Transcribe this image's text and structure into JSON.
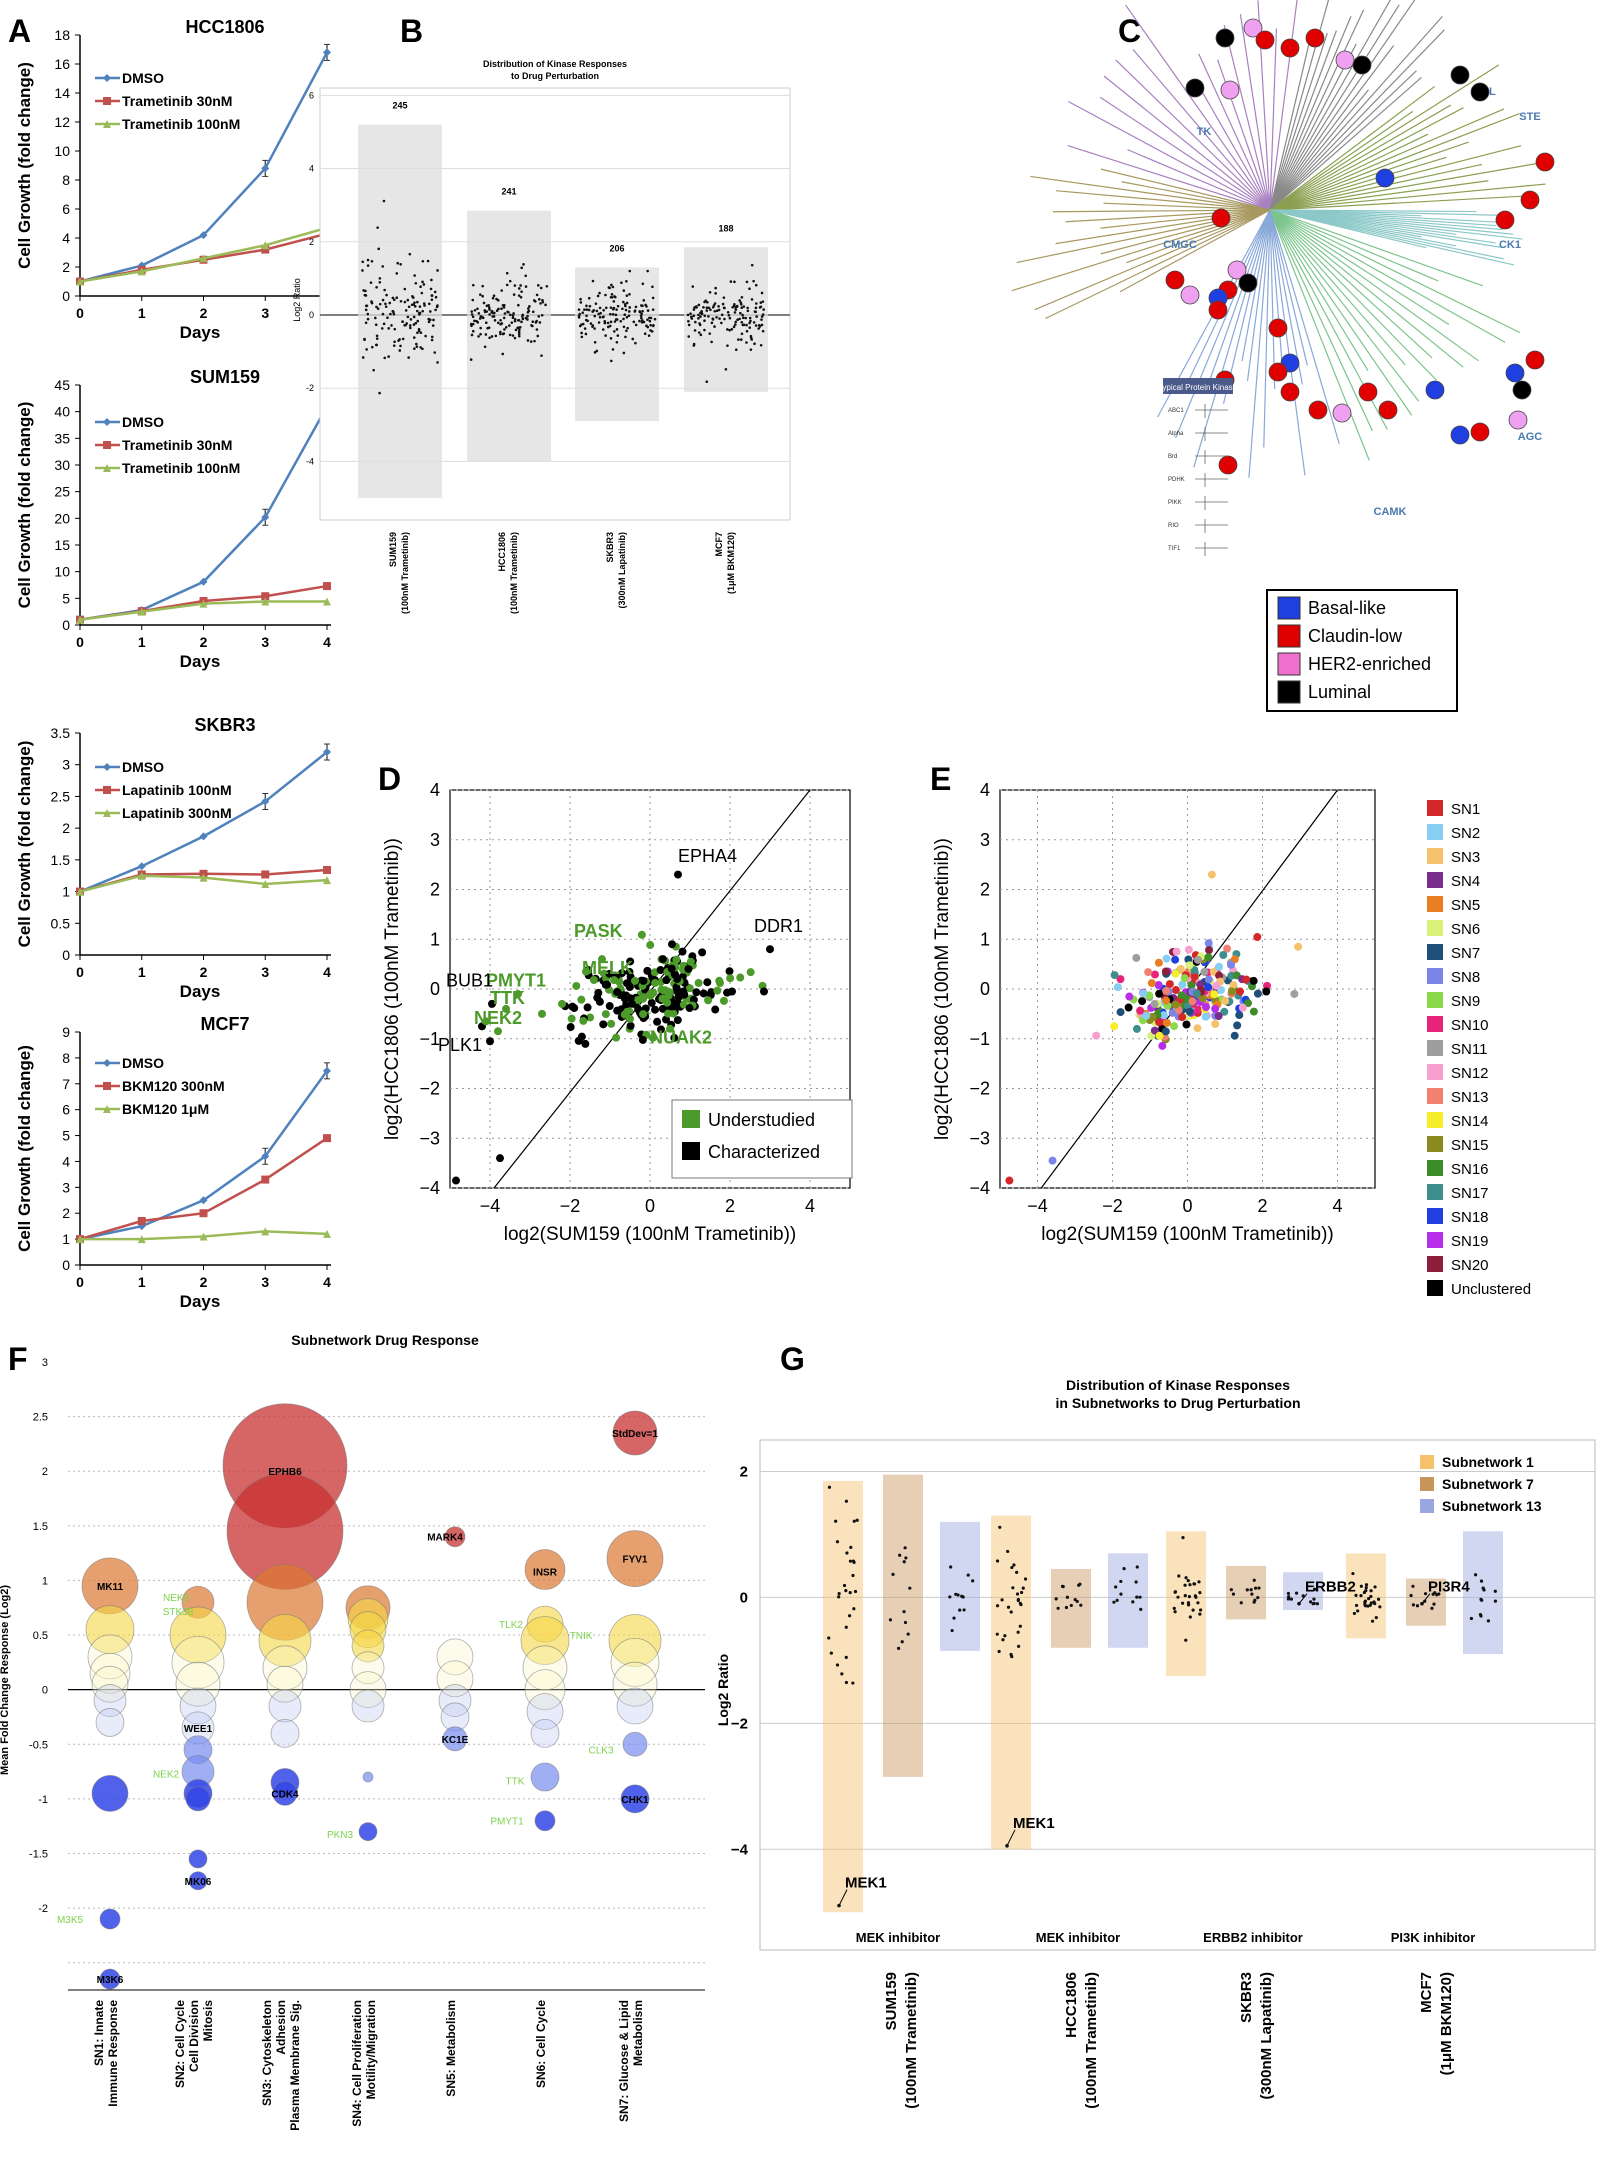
{
  "panel_letters": {
    "A": "A",
    "B": "B",
    "C": "C",
    "D": "D",
    "E": "E",
    "F": "F",
    "G": "G"
  },
  "legend_C": {
    "items": [
      {
        "label": "Basal-like",
        "color": "#1f3fe0"
      },
      {
        "label": "Claudin-low",
        "color": "#e00000"
      },
      {
        "label": "HER2-enriched",
        "color": "#f070d0"
      },
      {
        "label": "Luminal",
        "color": "#000000"
      }
    ]
  },
  "tree_C": {
    "groups": [
      "TK",
      "TKL",
      "STE",
      "CMGC",
      "CK1",
      "AGC",
      "CAMK"
    ],
    "atypical_title": "Atypical Protein Kinases",
    "atypical_rows": [
      "ABC1",
      "Alpha",
      "Brd",
      "PDHK",
      "PIKK",
      "RIO",
      "TIF1"
    ]
  },
  "chart_data": [
    {
      "id": "A1",
      "type": "line",
      "title": "HCC1806",
      "xlabel": "Days",
      "ylabel": "Cell Growth (fold change)",
      "x": [
        0,
        1,
        2,
        3,
        4
      ],
      "xlim": [
        0,
        4
      ],
      "ylim": [
        0,
        18
      ],
      "yticks": [
        0,
        2,
        4,
        6,
        8,
        10,
        12,
        14,
        16,
        18
      ],
      "series": [
        {
          "name": "DMSO",
          "color": "#4f81bd",
          "marker": "diamond",
          "values": [
            1,
            2.1,
            4.2,
            8.8,
            16.8
          ]
        },
        {
          "name": "Trametinib 30nM",
          "color": "#c0504d",
          "marker": "square",
          "values": [
            1,
            1.8,
            2.5,
            3.2,
            4.3
          ]
        },
        {
          "name": "Trametinib 100nM",
          "color": "#9bbb59",
          "marker": "triangle",
          "values": [
            1,
            1.7,
            2.6,
            3.5,
            4.7
          ]
        }
      ]
    },
    {
      "id": "A2",
      "type": "line",
      "title": "SUM159",
      "xlabel": "Days",
      "ylabel": "Cell Growth (fold change)",
      "x": [
        0,
        1,
        2,
        3,
        4
      ],
      "xlim": [
        0,
        4
      ],
      "ylim": [
        0,
        45
      ],
      "yticks": [
        0,
        5,
        10,
        15,
        20,
        25,
        30,
        35,
        40,
        45
      ],
      "series": [
        {
          "name": "DMSO",
          "color": "#4f81bd",
          "marker": "diamond",
          "values": [
            1,
            2.8,
            8.1,
            20.2,
            41
          ]
        },
        {
          "name": "Trametinib 30nM",
          "color": "#c0504d",
          "marker": "square",
          "values": [
            1,
            2.6,
            4.5,
            5.4,
            7.3
          ]
        },
        {
          "name": "Trametinib 100nM",
          "color": "#9bbb59",
          "marker": "triangle",
          "values": [
            1,
            2.5,
            4,
            4.4,
            4.4
          ]
        }
      ]
    },
    {
      "id": "A3",
      "type": "line",
      "title": "SKBR3",
      "xlabel": "Days",
      "ylabel": "Cell Growth (fold change)",
      "x": [
        0,
        1,
        2,
        3,
        4
      ],
      "xlim": [
        0,
        4
      ],
      "ylim": [
        0,
        3.5
      ],
      "yticks": [
        0,
        0.5,
        1,
        1.5,
        2,
        2.5,
        3,
        3.5
      ],
      "series": [
        {
          "name": "DMSO",
          "color": "#4f81bd",
          "marker": "diamond",
          "values": [
            1,
            1.4,
            1.87,
            2.42,
            3.2
          ]
        },
        {
          "name": "Lapatinib 100nM",
          "color": "#c0504d",
          "marker": "square",
          "values": [
            1,
            1.27,
            1.28,
            1.27,
            1.34
          ]
        },
        {
          "name": "Lapatinib 300nM",
          "color": "#9bbb59",
          "marker": "triangle",
          "values": [
            1,
            1.25,
            1.22,
            1.12,
            1.18
          ]
        }
      ]
    },
    {
      "id": "A4",
      "type": "line",
      "title": "MCF7",
      "xlabel": "Days",
      "ylabel": "Cell Growth (fold change)",
      "x": [
        0,
        1,
        2,
        3,
        4
      ],
      "xlim": [
        0,
        4
      ],
      "ylim": [
        0,
        9
      ],
      "yticks": [
        0,
        1,
        2,
        3,
        4,
        5,
        6,
        7,
        8,
        9
      ],
      "series": [
        {
          "name": "DMSO",
          "color": "#4f81bd",
          "marker": "diamond",
          "values": [
            1,
            1.5,
            2.5,
            4.2,
            7.5
          ]
        },
        {
          "name": "BKM120 300nM",
          "color": "#c0504d",
          "marker": "square",
          "values": [
            1,
            1.7,
            2,
            3.3,
            4.9
          ]
        },
        {
          "name": "BKM120 1μM",
          "color": "#9bbb59",
          "marker": "triangle",
          "values": [
            1,
            1,
            1.1,
            1.3,
            1.2
          ]
        }
      ]
    },
    {
      "id": "B",
      "type": "scatter",
      "title": "Distribution of Kinase Responses\nto Drug Perturbation",
      "ylabel": "Log2 Ratio",
      "ylim": [
        -5.6,
        6.2
      ],
      "yticks": [
        -4,
        -2,
        0,
        2,
        4,
        6
      ],
      "categories": [
        "SUM159\n(100nM Trametinib)",
        "HCC1806\n(100nM Trametinib)",
        "SKBR3\n(300nM Lapatinib)",
        "MCF7\n(1μM BKM120)"
      ],
      "counts": [
        "245",
        "241",
        "206",
        "188"
      ],
      "ranges": [
        [
          -5,
          5.2
        ],
        [
          -4,
          2.85
        ],
        [
          -2.9,
          1.3
        ],
        [
          -2.1,
          1.85
        ]
      ]
    },
    {
      "id": "D",
      "type": "scatter",
      "xlabel": "log2(SUM159 (100nM Trametinib))",
      "ylabel": "log2(HCC1806 (100nM Trametinib))",
      "xlim": [
        -5,
        5
      ],
      "ylim": [
        -4,
        4
      ],
      "xticks": [
        -4,
        -2,
        0,
        2,
        4
      ],
      "yticks": [
        -4,
        -3,
        -2,
        -1,
        0,
        1,
        2,
        3,
        4
      ],
      "legend": [
        {
          "label": "Understudied",
          "color": "#4c9a2a"
        },
        {
          "label": "Characterized",
          "color": "#000000"
        }
      ],
      "labels": [
        {
          "text": "EPHA4",
          "x": 0.7,
          "y": 2.55,
          "color": "#000000",
          "bold": false
        },
        {
          "text": "DDR1",
          "x": 2.6,
          "y": 1.15,
          "color": "#000000",
          "bold": false
        },
        {
          "text": "PASK",
          "x": -1.9,
          "y": 1.05,
          "color": "#4c9a2a",
          "bold": true
        },
        {
          "text": "MELK",
          "x": -1.7,
          "y": 0.3,
          "color": "#4c9a2a",
          "bold": true
        },
        {
          "text": "PMYT1",
          "x": -4.1,
          "y": 0.05,
          "color": "#4c9a2a",
          "bold": true
        },
        {
          "text": "BUB1",
          "x": -5.1,
          "y": 0.05,
          "color": "#000000",
          "bold": false
        },
        {
          "text": "TTK",
          "x": -4.0,
          "y": -0.3,
          "color": "#4c9a2a",
          "bold": true
        },
        {
          "text": "NEK2",
          "x": -4.4,
          "y": -0.7,
          "color": "#4c9a2a",
          "bold": true
        },
        {
          "text": "PLK1",
          "x": -5.3,
          "y": -1.25,
          "color": "#000000",
          "bold": false
        },
        {
          "text": "NUAK2",
          "x": 0.0,
          "y": -1.1,
          "color": "#4c9a2a",
          "bold": true
        }
      ],
      "points": [
        [
          -4.85,
          -3.85
        ],
        [
          -3.75,
          -3.4
        ],
        [
          0.7,
          2.3
        ],
        [
          3,
          0.8
        ],
        [
          2.85,
          -0.05
        ],
        [
          2.05,
          -0.05
        ],
        [
          0.55,
          0.9
        ],
        [
          -4.2,
          -0.75
        ],
        [
          -3.95,
          -0.3
        ],
        [
          -4.0,
          -1.05
        ]
      ]
    },
    {
      "id": "E",
      "type": "scatter",
      "xlabel": "log2(SUM159 (100nM Trametinib))",
      "ylabel": "log2(HCC1806 (100nM Trametinib))",
      "xlim": [
        -5,
        5
      ],
      "ylim": [
        -4,
        4
      ],
      "xticks": [
        -4,
        -2,
        0,
        2,
        4
      ],
      "yticks": [
        -4,
        -3,
        -2,
        -1,
        0,
        1,
        2,
        3,
        4
      ],
      "legend": [
        {
          "label": "SN1",
          "color": "#d62728"
        },
        {
          "label": "SN2",
          "color": "#87cef5"
        },
        {
          "label": "SN3",
          "color": "#f5c26b"
        },
        {
          "label": "SN4",
          "color": "#7b2d8e"
        },
        {
          "label": "SN5",
          "color": "#e87e1f"
        },
        {
          "label": "SN6",
          "color": "#d9f07a"
        },
        {
          "label": "SN7",
          "color": "#1f4e79"
        },
        {
          "label": "SN8",
          "color": "#7b85e8"
        },
        {
          "label": "SN9",
          "color": "#8bd94a"
        },
        {
          "label": "SN10",
          "color": "#e8247a"
        },
        {
          "label": "SN11",
          "color": "#9e9e9e"
        },
        {
          "label": "SN12",
          "color": "#f7a0d0"
        },
        {
          "label": "SN13",
          "color": "#f08070"
        },
        {
          "label": "SN14",
          "color": "#f5ee2a"
        },
        {
          "label": "SN15",
          "color": "#8a8a1f"
        },
        {
          "label": "SN16",
          "color": "#3c8c2a"
        },
        {
          "label": "SN17",
          "color": "#3e8e8e"
        },
        {
          "label": "SN18",
          "color": "#1f3fe0"
        },
        {
          "label": "SN19",
          "color": "#b82ee8"
        },
        {
          "label": "SN20",
          "color": "#8e1f3c"
        },
        {
          "label": "Unclustered",
          "color": "#000000"
        }
      ],
      "points": [
        [
          -4.75,
          -3.85,
          "#d62728"
        ],
        [
          -3.6,
          -3.45,
          "#7b85e8"
        ],
        [
          0.65,
          2.3,
          "#f5c26b"
        ],
        [
          2.95,
          0.85,
          "#f5c26b"
        ],
        [
          2.85,
          -0.1,
          "#9e9e9e"
        ],
        [
          2.1,
          -0.05,
          "#000000"
        ]
      ]
    },
    {
      "id": "F",
      "type": "scatter",
      "title": "Subnetwork Drug Response",
      "ylabel": "Mean Fold Change Response (Log2)",
      "ylim": [
        -2.75,
        3
      ],
      "yticks": [
        "3",
        "2.5",
        "2",
        "1.5",
        "1",
        "0.5",
        "0",
        "-0.5",
        "-1",
        "-1.5",
        "-2"
      ],
      "categories": [
        "SN1: Innate\nImmune Response",
        "SN2: Cell Cycle\nCell Division\nMitosis",
        "SN3: Cytoskeleton\nAdhesion\nPlasma Membrane Sig.",
        "SN4: Cell Proliferation\nMotility/Migration",
        "SN5: Metabolism",
        "SN6: Cell Cycle",
        "SN7: Glucose & Lipid\nMetabolism"
      ],
      "labels": [
        {
          "text": "MK11",
          "cat": 0,
          "y": 0.95,
          "color": "#000000"
        },
        {
          "text": "M3K5",
          "cat": 0,
          "y": -2.1,
          "color": "#7cd34c",
          "dx": -40
        },
        {
          "text": "M3K6",
          "cat": 0,
          "y": -2.65,
          "color": "#000000"
        },
        {
          "text": "NEK9",
          "cat": 1,
          "y": 0.85,
          "color": "#7cd34c",
          "dx": -22
        },
        {
          "text": "STK38",
          "cat": 1,
          "y": 0.72,
          "color": "#7cd34c",
          "dx": -20
        },
        {
          "text": "WEE1",
          "cat": 1,
          "y": -0.35,
          "color": "#000000"
        },
        {
          "text": "NEK2",
          "cat": 1,
          "y": -0.77,
          "color": "#7cd34c",
          "dx": -32
        },
        {
          "text": "MK06",
          "cat": 1,
          "y": -1.75,
          "color": "#000000"
        },
        {
          "text": "EPHB6",
          "cat": 2,
          "y": 2.0,
          "color": "#000000"
        },
        {
          "text": "CDK4",
          "cat": 2,
          "y": -0.95,
          "color": "#000000"
        },
        {
          "text": "PKN3",
          "cat": 3,
          "y": -1.32,
          "color": "#7cd34c",
          "dx": -28
        },
        {
          "text": "MARK4",
          "cat": 4,
          "y": 1.4,
          "color": "#000000",
          "dx": -10
        },
        {
          "text": "KC1E",
          "cat": 4,
          "y": -0.45,
          "color": "#000000"
        },
        {
          "text": "INSR",
          "cat": 5,
          "y": 1.08,
          "color": "#000000"
        },
        {
          "text": "TLK2",
          "cat": 5,
          "y": 0.6,
          "color": "#7cd34c",
          "dx": -34
        },
        {
          "text": "TNIK",
          "cat": 5,
          "y": 0.5,
          "color": "#7cd34c",
          "dx": 36
        },
        {
          "text": "TTK",
          "cat": 5,
          "y": -0.83,
          "color": "#7cd34c",
          "dx": -30
        },
        {
          "text": "PMYT1",
          "cat": 5,
          "y": -1.2,
          "color": "#7cd34c",
          "dx": -38
        },
        {
          "text": "StdDev=1",
          "cat": 6,
          "y": 2.35,
          "color": "#000000"
        },
        {
          "text": "FYV1",
          "cat": 6,
          "y": 1.2,
          "color": "#000000"
        },
        {
          "text": "CLK3",
          "cat": 6,
          "y": -0.55,
          "color": "#7cd34c",
          "dx": -34
        },
        {
          "text": "CHK1",
          "cat": 6,
          "y": -1.0,
          "color": "#000000"
        }
      ]
    },
    {
      "id": "G",
      "type": "scatter",
      "title": "Distribution of Kinase Responses\nin Subnetworks to Drug Perturbation",
      "ylabel": "Log2 Ratio",
      "ylim": [
        -5.6,
        2.5
      ],
      "yticks": [
        -4,
        -2,
        0,
        2
      ],
      "legend": [
        {
          "label": "Subnetwork 1",
          "color": "#f5c26b"
        },
        {
          "label": "Subnetwork 7",
          "color": "#c8955a"
        },
        {
          "label": "Subnetwork 13",
          "color": "#9aa6e0"
        }
      ],
      "groups": [
        {
          "label": "SUM159\n(100nM Trametinib)",
          "inhibitor": "MEK inhibitor",
          "boxes": [
            [
              -5,
              1.85
            ],
            [
              -2.85,
              1.95
            ],
            [
              -0.85,
              1.2
            ]
          ]
        },
        {
          "label": "HCC1806\n(100nM Trametinib)",
          "inhibitor": "MEK inhibitor",
          "boxes": [
            [
              -4,
              1.3
            ],
            [
              -0.8,
              0.45
            ],
            [
              -0.8,
              0.7
            ]
          ]
        },
        {
          "label": "SKBR3\n(300nM Lapatinib)",
          "inhibitor": "ERBB2 inhibitor",
          "boxes": [
            [
              -1.25,
              1.05
            ],
            [
              -0.35,
              0.5
            ],
            [
              -0.2,
              0.4
            ]
          ]
        },
        {
          "label": "MCF7\n(1μM BKM120)",
          "inhibitor": "PI3K inhibitor",
          "boxes": [
            [
              -0.65,
              0.7
            ],
            [
              -0.45,
              0.3
            ],
            [
              -0.9,
              1.05
            ]
          ]
        }
      ],
      "labels": [
        {
          "text": "MEK1",
          "group": 0,
          "sub": 0,
          "y": -4.8
        },
        {
          "text": "MEK1",
          "group": 1,
          "sub": 0,
          "y": -3.85
        },
        {
          "text": "ERBB2",
          "group": 2,
          "sub": 2,
          "y": -0.1
        },
        {
          "text": "PI3R4",
          "group": 3,
          "sub": 1,
          "y": -0.1
        }
      ]
    }
  ]
}
